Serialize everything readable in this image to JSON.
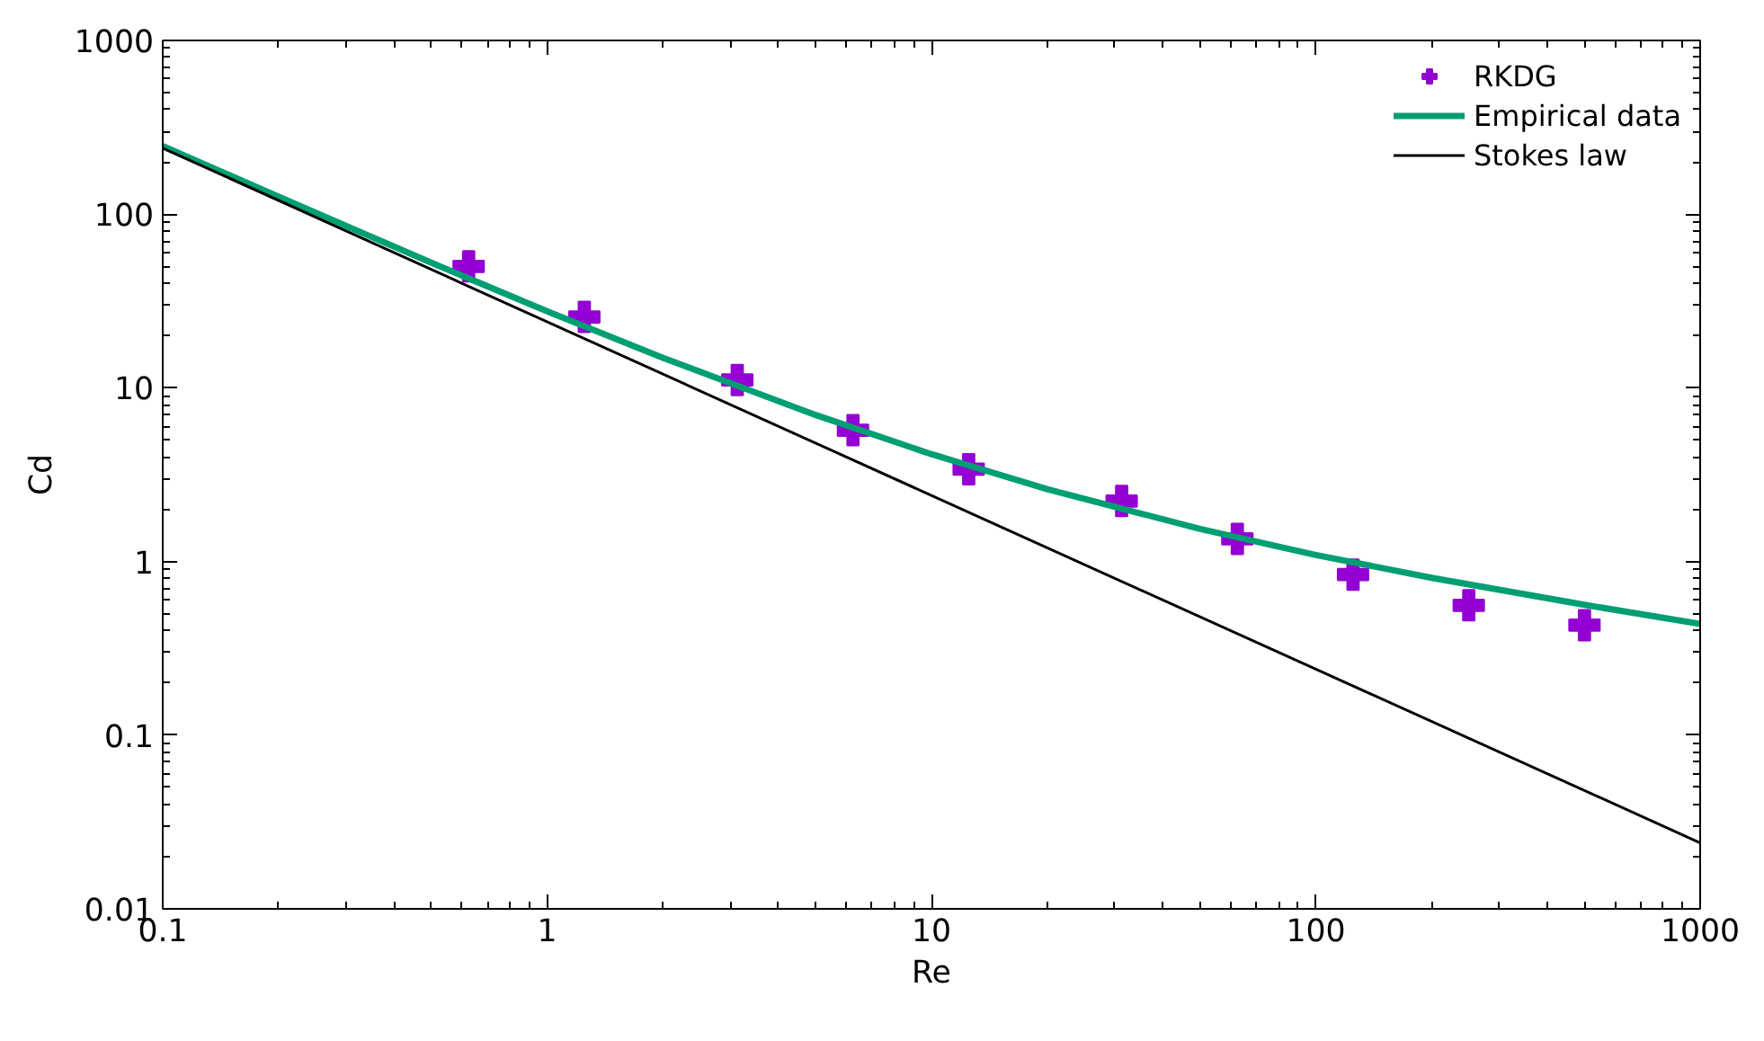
{
  "chart_data": {
    "type": "line",
    "xlabel": "Re",
    "ylabel": "Cd",
    "log": "xy",
    "grid": false,
    "legend": "top right",
    "xlim": [
      0.1,
      1000
    ],
    "ylim": [
      0.01,
      1000
    ],
    "xticks": [
      0.1,
      1,
      10,
      100,
      1000
    ],
    "yticks": [
      0.01,
      0.1,
      1,
      10,
      100,
      1000
    ],
    "series": [
      {
        "name": "RKDG",
        "type": "scatter",
        "marker": "cross",
        "color": "#9400d3",
        "x": [
          0.625,
          1.25,
          3.125,
          6.25,
          12.5,
          31.25,
          62.5,
          125,
          250,
          500
        ],
        "values": [
          50,
          25.6,
          11.1,
          5.7,
          3.4,
          2.23,
          1.35,
          0.84,
          0.56,
          0.43
        ]
      },
      {
        "name": "Empirical data",
        "color": "#009e73",
        "x": [
          0.1,
          0.2,
          0.5,
          1,
          2,
          5,
          10,
          20,
          50,
          100,
          200,
          500,
          1000
        ],
        "values": [
          247,
          126,
          52.5,
          27.6,
          14.9,
          6.97,
          4.15,
          2.61,
          1.54,
          1.09,
          0.806,
          0.563,
          0.437
        ]
      },
      {
        "name": "Stokes law",
        "color": "#000000",
        "x": [
          0.1,
          1000
        ],
        "values": [
          240,
          0.024
        ]
      }
    ]
  }
}
